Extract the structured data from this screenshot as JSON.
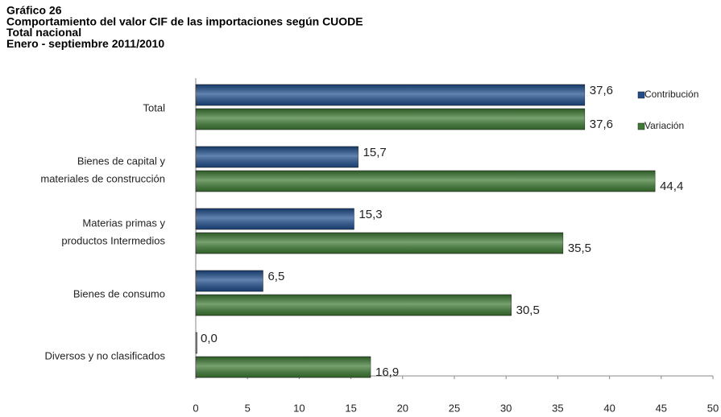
{
  "chart_data": {
    "type": "hbar",
    "title": [
      "Gráfico 26",
      "Comportamiento del valor CIF de las importaciones según CUODE",
      "Total nacional",
      "Enero - septiembre 2011/2010"
    ],
    "categories": [
      [
        "Total"
      ],
      [
        "Bienes de capital y",
        "materiales de construcción"
      ],
      [
        "Materias primas y",
        "productos Intermedios"
      ],
      [
        "Bienes de consumo"
      ],
      [
        "Diversos y no clasificados"
      ]
    ],
    "series": [
      {
        "name": "Contribución",
        "color": "#1f4e8c",
        "values": [
          37.6,
          15.7,
          15.3,
          6.5,
          0.0
        ],
        "value_labels": [
          "37,6",
          "15,7",
          "15,3",
          "6,5",
          "0,0"
        ]
      },
      {
        "name": "Variación",
        "color": "#3d7a33",
        "values": [
          37.6,
          44.4,
          35.5,
          30.5,
          16.9
        ],
        "value_labels": [
          "37,6",
          "44,4",
          "35,5",
          "30,5",
          "16,9"
        ]
      }
    ],
    "xlim": [
      0,
      50
    ],
    "xticks": [
      0,
      5,
      10,
      15,
      20,
      25,
      30,
      35,
      40,
      45,
      50
    ],
    "legend": "top-right"
  }
}
